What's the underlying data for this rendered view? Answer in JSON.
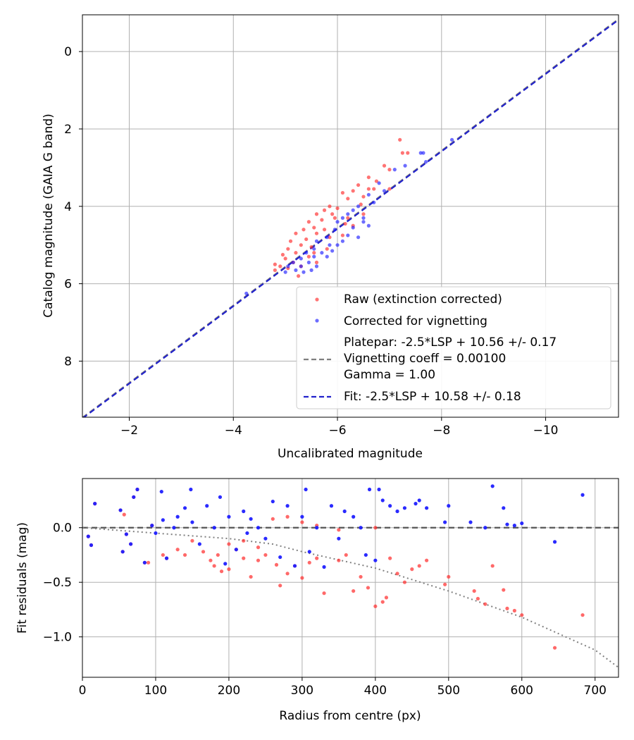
{
  "chart_data": [
    {
      "type": "scatter",
      "xlabel": "Uncalibrated magnitude",
      "ylabel": "Catalog magnitude (GAIA G band)",
      "xlim": [
        -1.1,
        -11.4
      ],
      "ylim": [
        9.45,
        -0.95
      ],
      "xticks": [
        -2,
        -4,
        -6,
        -8,
        -10
      ],
      "xtick_labels": [
        "−2",
        "−4",
        "−6",
        "−8",
        "−10"
      ],
      "yticks": [
        0,
        2,
        4,
        6,
        8
      ],
      "ytick_labels": [
        "0",
        "2",
        "4",
        "6",
        "8"
      ],
      "grid": true,
      "legend_position": "lower-right",
      "legend": {
        "raw": "Raw (extinction corrected)",
        "corrected": "Corrected for vignetting",
        "platepar_lines": [
          "Platepar: -2.5*LSP + 10.56 +/- 0.17",
          "Vignetting coeff = 0.00100",
          "Gamma = 1.00"
        ],
        "fit": "Fit: -2.5*LSP + 10.58 +/- 0.18"
      },
      "lines": [
        {
          "name": "Platepar",
          "slope": 1.0,
          "intercept": 10.56,
          "color": "#7f7f7f",
          "style": "dashed"
        },
        {
          "name": "Fit",
          "slope": 1.0,
          "intercept": 10.58,
          "color": "#2222cc",
          "style": "dashed"
        }
      ],
      "series": [
        {
          "name": "Raw (extinction corrected)",
          "color": "#ff2a2a",
          "points": [
            [
              -7.2,
              2.28
            ],
            [
              -7.25,
              2.62
            ],
            [
              -7.35,
              2.62
            ],
            [
              -6.9,
              2.95
            ],
            [
              -7.0,
              3.05
            ],
            [
              -6.6,
              3.25
            ],
            [
              -6.75,
              3.35
            ],
            [
              -6.4,
              3.45
            ],
            [
              -6.6,
              3.55
            ],
            [
              -7.0,
              3.55
            ],
            [
              -6.3,
              3.6
            ],
            [
              -6.1,
              3.65
            ],
            [
              -6.5,
              3.75
            ],
            [
              -6.7,
              3.55
            ],
            [
              -6.2,
              3.8
            ],
            [
              -5.85,
              4.0
            ],
            [
              -6.0,
              4.05
            ],
            [
              -5.75,
              4.1
            ],
            [
              -5.9,
              4.2
            ],
            [
              -5.6,
              4.2
            ],
            [
              -5.95,
              4.3
            ],
            [
              -6.15,
              4.45
            ],
            [
              -5.7,
              4.35
            ],
            [
              -5.45,
              4.4
            ],
            [
              -5.55,
              4.55
            ],
            [
              -5.35,
              4.6
            ],
            [
              -5.6,
              4.7
            ],
            [
              -5.2,
              4.7
            ],
            [
              -5.4,
              4.85
            ],
            [
              -5.75,
              4.6
            ],
            [
              -5.85,
              4.8
            ],
            [
              -5.1,
              4.9
            ],
            [
              -5.3,
              5.0
            ],
            [
              -5.5,
              5.05
            ],
            [
              -5.05,
              5.1
            ],
            [
              -4.95,
              5.25
            ],
            [
              -5.2,
              5.2
            ],
            [
              -5.45,
              5.3
            ],
            [
              -5.0,
              5.35
            ],
            [
              -5.15,
              5.45
            ],
            [
              -4.8,
              5.5
            ],
            [
              -4.9,
              5.55
            ],
            [
              -5.3,
              5.55
            ],
            [
              -5.05,
              5.6
            ],
            [
              -5.25,
              5.8
            ],
            [
              -4.8,
              5.65
            ],
            [
              -5.6,
              5.45
            ],
            [
              -6.3,
              4.5
            ],
            [
              -6.5,
              4.2
            ],
            [
              -6.1,
              4.75
            ],
            [
              -5.55,
              5.2
            ],
            [
              -5.8,
              5.1
            ],
            [
              -6.2,
              4.3
            ],
            [
              -6.45,
              3.95
            ]
          ]
        },
        {
          "name": "Corrected for vignetting",
          "color": "#1f1fff",
          "points": [
            [
              -8.2,
              2.28
            ],
            [
              -7.6,
              2.62
            ],
            [
              -7.65,
              2.62
            ],
            [
              -7.7,
              2.85
            ],
            [
              -7.3,
              2.95
            ],
            [
              -7.1,
              3.05
            ],
            [
              -6.8,
              3.4
            ],
            [
              -6.9,
              3.6
            ],
            [
              -6.6,
              3.7
            ],
            [
              -6.7,
              3.9
            ],
            [
              -6.4,
              4.0
            ],
            [
              -6.3,
              4.1
            ],
            [
              -6.5,
              4.3
            ],
            [
              -6.1,
              4.3
            ],
            [
              -6.0,
              4.4
            ],
            [
              -6.3,
              4.55
            ],
            [
              -6.6,
              4.5
            ],
            [
              -5.95,
              4.6
            ],
            [
              -6.2,
              4.75
            ],
            [
              -5.8,
              4.8
            ],
            [
              -6.1,
              4.9
            ],
            [
              -5.6,
              4.9
            ],
            [
              -5.85,
              5.0
            ],
            [
              -5.55,
              5.1
            ],
            [
              -5.7,
              5.2
            ],
            [
              -5.4,
              5.2
            ],
            [
              -5.55,
              5.3
            ],
            [
              -5.3,
              5.35
            ],
            [
              -5.45,
              5.45
            ],
            [
              -5.15,
              5.45
            ],
            [
              -5.3,
              5.55
            ],
            [
              -5.05,
              5.55
            ],
            [
              -5.2,
              5.65
            ],
            [
              -5.35,
              5.7
            ],
            [
              -5.5,
              5.65
            ],
            [
              -6.4,
              4.8
            ],
            [
              -6.0,
              5.0
            ],
            [
              -5.9,
              5.15
            ],
            [
              -4.25,
              6.25
            ],
            [
              -5.0,
              5.7
            ],
            [
              -5.6,
              5.55
            ],
            [
              -5.8,
              5.3
            ],
            [
              -6.5,
              4.4
            ],
            [
              -6.2,
              4.2
            ]
          ]
        }
      ]
    },
    {
      "type": "scatter",
      "xlabel": "Radius from centre (px)",
      "ylabel": "Fit residuals (mag)",
      "xlim": [
        0,
        732
      ],
      "ylim": [
        -1.37,
        0.45
      ],
      "xticks": [
        0,
        100,
        200,
        300,
        400,
        500,
        600,
        700
      ],
      "xtick_labels": [
        "0",
        "100",
        "200",
        "300",
        "400",
        "500",
        "600",
        "700"
      ],
      "yticks": [
        0.0,
        -0.5,
        -1.0
      ],
      "ytick_labels": [
        "0.0",
        "−0.5",
        "−1.0"
      ],
      "grid": true,
      "lines": [
        {
          "name": "zero",
          "y": 0.0,
          "color": "#555555",
          "style": "dashed"
        },
        {
          "name": "vignetting model",
          "color": "#808080",
          "style": "dotted",
          "points": [
            [
              0,
              0
            ],
            [
              100,
              -0.05
            ],
            [
              200,
              -0.1
            ],
            [
              260,
              -0.15
            ],
            [
              300,
              -0.22
            ],
            [
              400,
              -0.37
            ],
            [
              500,
              -0.58
            ],
            [
              600,
              -0.82
            ],
            [
              700,
              -1.12
            ],
            [
              732,
              -1.28
            ]
          ]
        }
      ],
      "series": [
        {
          "name": "Raw (extinction corrected)",
          "color": "#ff2a2a",
          "points": [
            [
              8,
              -0.08
            ],
            [
              12,
              -0.16
            ],
            [
              17,
              0.22
            ],
            [
              52,
              0.16
            ],
            [
              57,
              0.12
            ],
            [
              55,
              -0.22
            ],
            [
              60,
              -0.06
            ],
            [
              66,
              -0.15
            ],
            [
              70,
              0.28
            ],
            [
              75,
              0.35
            ],
            [
              85,
              -0.32
            ],
            [
              90,
              -0.32
            ],
            [
              95,
              0.02
            ],
            [
              110,
              -0.25
            ],
            [
              115,
              -0.28
            ],
            [
              130,
              -0.2
            ],
            [
              140,
              -0.25
            ],
            [
              150,
              -0.12
            ],
            [
              165,
              -0.22
            ],
            [
              175,
              -0.3
            ],
            [
              180,
              -0.35
            ],
            [
              185,
              -0.25
            ],
            [
              190,
              -0.4
            ],
            [
              200,
              -0.38
            ],
            [
              210,
              -0.2
            ],
            [
              220,
              -0.28
            ],
            [
              230,
              -0.45
            ],
            [
              240,
              -0.3
            ],
            [
              250,
              -0.25
            ],
            [
              265,
              -0.34
            ],
            [
              270,
              -0.53
            ],
            [
              280,
              -0.42
            ],
            [
              290,
              -0.35
            ],
            [
              300,
              -0.46
            ],
            [
              310,
              -0.32
            ],
            [
              320,
              -0.28
            ],
            [
              330,
              -0.6
            ],
            [
              350,
              -0.3
            ],
            [
              360,
              -0.25
            ],
            [
              370,
              -0.58
            ],
            [
              380,
              -0.45
            ],
            [
              390,
              -0.55
            ],
            [
              400,
              -0.72
            ],
            [
              410,
              -0.68
            ],
            [
              415,
              -0.64
            ],
            [
              420,
              -0.28
            ],
            [
              430,
              -0.42
            ],
            [
              440,
              -0.5
            ],
            [
              450,
              -0.38
            ],
            [
              460,
              -0.35
            ],
            [
              470,
              -0.3
            ],
            [
              500,
              -0.45
            ],
            [
              495,
              -0.52
            ],
            [
              535,
              -0.58
            ],
            [
              540,
              -0.65
            ],
            [
              550,
              -0.7
            ],
            [
              560,
              -0.35
            ],
            [
              575,
              -0.57
            ],
            [
              580,
              -0.74
            ],
            [
              590,
              -0.76
            ],
            [
              600,
              -0.8
            ],
            [
              645,
              -1.1
            ],
            [
              683,
              -0.8
            ],
            [
              200,
              -0.15
            ],
            [
              220,
              -0.12
            ],
            [
              240,
              -0.18
            ],
            [
              260,
              0.08
            ],
            [
              300,
              0.05
            ],
            [
              320,
              0.02
            ],
            [
              350,
              -0.02
            ],
            [
              400,
              0.0
            ],
            [
              280,
              0.1
            ]
          ]
        },
        {
          "name": "Corrected for vignetting",
          "color": "#1f1fff",
          "points": [
            [
              8,
              -0.08
            ],
            [
              12,
              -0.16
            ],
            [
              17,
              0.22
            ],
            [
              52,
              0.16
            ],
            [
              55,
              -0.22
            ],
            [
              60,
              -0.06
            ],
            [
              66,
              -0.15
            ],
            [
              70,
              0.28
            ],
            [
              75,
              0.35
            ],
            [
              85,
              -0.32
            ],
            [
              95,
              0.02
            ],
            [
              100,
              -0.05
            ],
            [
              108,
              0.33
            ],
            [
              110,
              0.07
            ],
            [
              115,
              -0.28
            ],
            [
              125,
              0.0
            ],
            [
              130,
              0.1
            ],
            [
              140,
              0.18
            ],
            [
              148,
              0.35
            ],
            [
              150,
              0.05
            ],
            [
              160,
              -0.15
            ],
            [
              170,
              0.2
            ],
            [
              180,
              0.0
            ],
            [
              188,
              0.28
            ],
            [
              195,
              -0.33
            ],
            [
              200,
              0.1
            ],
            [
              210,
              -0.2
            ],
            [
              220,
              0.15
            ],
            [
              225,
              -0.05
            ],
            [
              230,
              0.08
            ],
            [
              240,
              0.0
            ],
            [
              250,
              -0.1
            ],
            [
              260,
              0.24
            ],
            [
              270,
              -0.27
            ],
            [
              280,
              0.2
            ],
            [
              290,
              -0.35
            ],
            [
              300,
              0.1
            ],
            [
              305,
              0.35
            ],
            [
              310,
              -0.22
            ],
            [
              320,
              0.0
            ],
            [
              330,
              -0.36
            ],
            [
              340,
              0.2
            ],
            [
              350,
              -0.1
            ],
            [
              358,
              0.15
            ],
            [
              370,
              0.1
            ],
            [
              380,
              0.0
            ],
            [
              387,
              -0.25
            ],
            [
              392,
              0.35
            ],
            [
              400,
              -0.3
            ],
            [
              405,
              0.35
            ],
            [
              410,
              0.25
            ],
            [
              420,
              0.2
            ],
            [
              430,
              0.15
            ],
            [
              440,
              0.18
            ],
            [
              455,
              0.22
            ],
            [
              460,
              0.25
            ],
            [
              470,
              0.18
            ],
            [
              495,
              0.05
            ],
            [
              500,
              0.2
            ],
            [
              530,
              0.05
            ],
            [
              550,
              0.0
            ],
            [
              560,
              0.38
            ],
            [
              575,
              0.18
            ],
            [
              580,
              0.03
            ],
            [
              590,
              0.02
            ],
            [
              600,
              0.04
            ],
            [
              645,
              -0.13
            ],
            [
              683,
              0.3
            ]
          ]
        }
      ]
    }
  ]
}
